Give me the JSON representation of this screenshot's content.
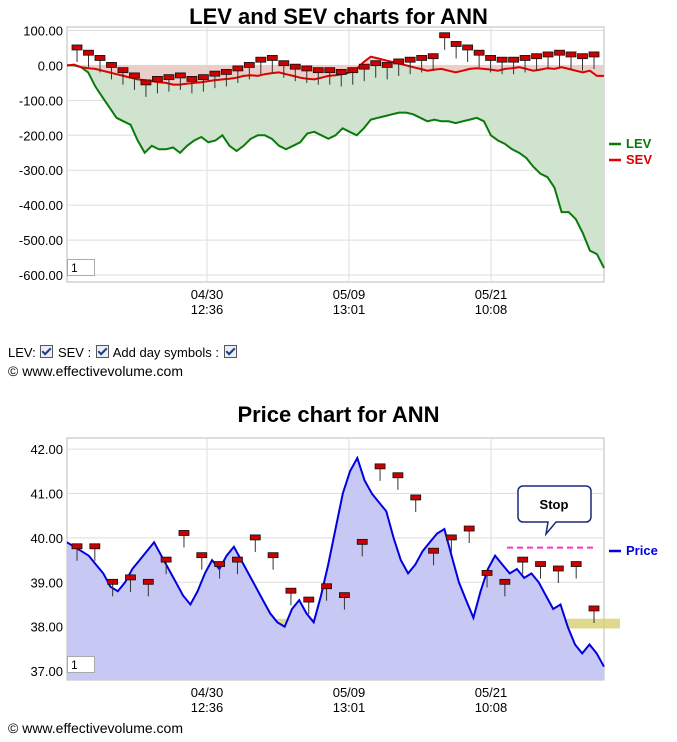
{
  "copyright": "© www.effectivevolume.com",
  "controls": {
    "lev_label": "LEV:",
    "sev_label": "SEV :",
    "day_label": "Add day symbols :"
  },
  "range_box_value": "1",
  "colors": {
    "lev": "#0a7a0a",
    "sev": "#e00000",
    "price": "#0000e0",
    "lev_fill": "#cfe3cf",
    "sev_fill": "#f2c7c7",
    "price_fill": "#c8c8f5",
    "stop": "#ff33cc",
    "support_band": "#d9d27a"
  },
  "chart_data": [
    {
      "type": "line",
      "title": "LEV and SEV charts for ANN",
      "x_ticks": [
        {
          "date": "04/30",
          "time": "12:36"
        },
        {
          "date": "05/09",
          "time": "13:01"
        },
        {
          "date": "05/21",
          "time": "10:08"
        }
      ],
      "ylim": [
        -620,
        110
      ],
      "yticks": [
        "100.00",
        "0.00",
        "-100.00",
        "-200.00",
        "-300.00",
        "-400.00",
        "-500.00",
        "-600.00"
      ],
      "ytick_values": [
        100,
        0,
        -100,
        -200,
        -300,
        -400,
        -500,
        -600
      ],
      "series": [
        {
          "name": "LEV",
          "values": [
            0,
            0,
            -5,
            -20,
            -60,
            -90,
            -120,
            -150,
            -160,
            -170,
            -215,
            -250,
            -230,
            -240,
            -240,
            -235,
            -250,
            -230,
            -215,
            -205,
            -220,
            -215,
            -200,
            -230,
            -245,
            -230,
            -210,
            -200,
            -200,
            -210,
            -230,
            -240,
            -230,
            -220,
            -195,
            -190,
            -200,
            -210,
            -200,
            -180,
            -190,
            -200,
            -180,
            -155,
            -150,
            -145,
            -140,
            -135,
            -135,
            -140,
            -150,
            -160,
            -155,
            -160,
            -160,
            -165,
            -160,
            -155,
            -150,
            -160,
            -200,
            -215,
            -225,
            -240,
            -250,
            -265,
            -290,
            -310,
            -320,
            -350,
            -420,
            -420,
            -440,
            -480,
            -530,
            -540,
            -580
          ]
        },
        {
          "name": "SEV",
          "values": [
            0,
            2,
            -5,
            -8,
            -10,
            -15,
            -20,
            -25,
            -30,
            -35,
            -40,
            -42,
            -45,
            -48,
            -50,
            -55,
            -55,
            -52,
            -50,
            -48,
            -45,
            -42,
            -40,
            -38,
            -35,
            -30,
            -28,
            -30,
            -25,
            -22,
            -20,
            -25,
            -30,
            -35,
            -38,
            -40,
            -35,
            -30,
            -28,
            -25,
            -20,
            -10,
            10,
            25,
            20,
            15,
            10,
            5,
            0,
            -5,
            -10,
            -15,
            -12,
            -10,
            -15,
            -20,
            -15,
            -10,
            -8,
            -10,
            -12,
            -15,
            -10,
            -8,
            -5,
            -10,
            -15,
            -12,
            -8,
            -10,
            -5,
            -10,
            -15,
            -20,
            -15,
            -30,
            -30
          ]
        }
      ],
      "legend": [
        "LEV",
        "SEV"
      ],
      "legend_position": "right",
      "day_symbols_lev": [
        50,
        35,
        20,
        0,
        -15,
        -30,
        -50,
        -40,
        -35,
        -30,
        -40,
        -35,
        -25,
        -20,
        -10,
        0,
        15,
        20,
        5,
        -5,
        -10,
        -15,
        -15,
        -20,
        -15,
        -5,
        5,
        0,
        10,
        15,
        20,
        25,
        85,
        60,
        50,
        35,
        20,
        15,
        15,
        20,
        25,
        30,
        35,
        30,
        25,
        30
      ],
      "grid": true
    },
    {
      "type": "area",
      "title": "Price chart for ANN",
      "x_ticks": [
        {
          "date": "04/30",
          "time": "12:36"
        },
        {
          "date": "05/09",
          "time": "13:01"
        },
        {
          "date": "05/21",
          "time": "10:08"
        }
      ],
      "ylim": [
        36.8,
        42.25
      ],
      "yticks": [
        "42.00",
        "41.00",
        "40.00",
        "39.00",
        "38.00",
        "37.00"
      ],
      "ytick_values": [
        42,
        41,
        40,
        39,
        38,
        37
      ],
      "series": [
        {
          "name": "Price",
          "values": [
            39.9,
            39.8,
            39.7,
            39.6,
            39.4,
            39.2,
            38.9,
            38.8,
            39.0,
            39.3,
            39.5,
            39.7,
            39.9,
            39.6,
            39.3,
            39.0,
            38.7,
            38.5,
            38.8,
            39.2,
            39.5,
            39.3,
            39.6,
            39.8,
            39.5,
            39.2,
            38.9,
            38.6,
            38.3,
            38.1,
            38.0,
            38.4,
            38.6,
            38.3,
            38.1,
            38.7,
            39.4,
            40.2,
            41.0,
            41.5,
            41.8,
            41.3,
            41.0,
            40.8,
            40.6,
            40.0,
            39.5,
            39.2,
            39.4,
            39.7,
            39.9,
            40.1,
            40.2,
            39.6,
            39.0,
            38.6,
            38.2,
            38.8,
            39.3,
            39.6,
            39.4,
            39.2,
            39.3,
            39.1,
            39.2,
            39.0,
            38.7,
            38.4,
            38.5,
            38.0,
            37.6,
            37.4,
            37.6,
            37.4,
            37.1
          ]
        }
      ],
      "day_symbols": [
        39.8,
        39.8,
        39.0,
        39.1,
        39.0,
        39.5,
        40.1,
        39.6,
        39.4,
        39.5,
        40.0,
        39.6,
        38.8,
        38.6,
        38.9,
        38.7,
        39.9,
        41.6,
        41.4,
        40.9,
        39.7,
        40.0,
        40.2,
        39.2,
        39.0,
        39.5,
        39.4,
        39.3,
        39.4,
        38.4
      ],
      "stop_level": 39.78,
      "stop_label": "Stop",
      "support_band": [
        37.96,
        38.18
      ],
      "legend": [
        "Price"
      ],
      "legend_position": "right",
      "grid": true
    }
  ]
}
